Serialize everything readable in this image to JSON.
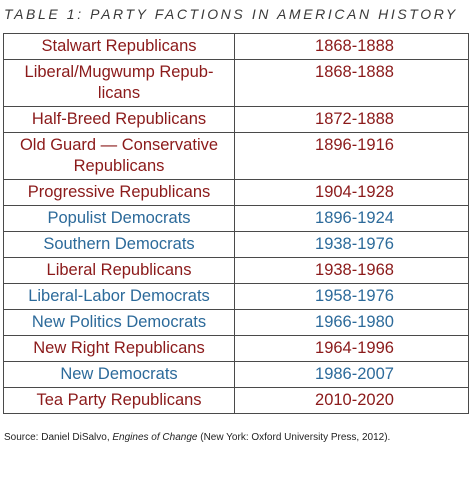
{
  "title": "TABLE 1: PARTY FACTIONS IN AMERICAN HISTORY",
  "colors": {
    "republican": "#8b1a1a",
    "democrat": "#2c6a9a",
    "border": "#4a4a4a"
  },
  "rows": [
    {
      "faction": "Stalwart Republicans",
      "years": "1868-1888",
      "party": "republican"
    },
    {
      "faction": "Liberal/Mugwump Repub-\nlicans",
      "years": "1868-1888",
      "party": "republican"
    },
    {
      "faction": "Half-Breed Republicans",
      "years": "1872-1888",
      "party": "republican"
    },
    {
      "faction": "Old Guard — Conservative\nRepublicans",
      "years": "1896-1916",
      "party": "republican"
    },
    {
      "faction": "Progressive Republicans",
      "years": "1904-1928",
      "party": "republican"
    },
    {
      "faction": "Populist Democrats",
      "years": "1896-1924",
      "party": "democrat"
    },
    {
      "faction": "Southern Democrats",
      "years": "1938-1976",
      "party": "democrat"
    },
    {
      "faction": "Liberal Republicans",
      "years": "1938-1968",
      "party": "republican"
    },
    {
      "faction": "Liberal-Labor Democrats",
      "years": "1958-1976",
      "party": "democrat"
    },
    {
      "faction": "New Politics Democrats",
      "years": "1966-1980",
      "party": "democrat"
    },
    {
      "faction": "New Right Republicans",
      "years": "1964-1996",
      "party": "republican"
    },
    {
      "faction": "New Democrats",
      "years": "1986-2007",
      "party": "democrat"
    },
    {
      "faction": "Tea Party Republicans",
      "years": "2010-2020",
      "party": "republican"
    }
  ],
  "source": {
    "prefix": "Source: Daniel DiSalvo, ",
    "book": "Engines of Change",
    "suffix": " (New York: Oxford University Press, 2012)."
  }
}
